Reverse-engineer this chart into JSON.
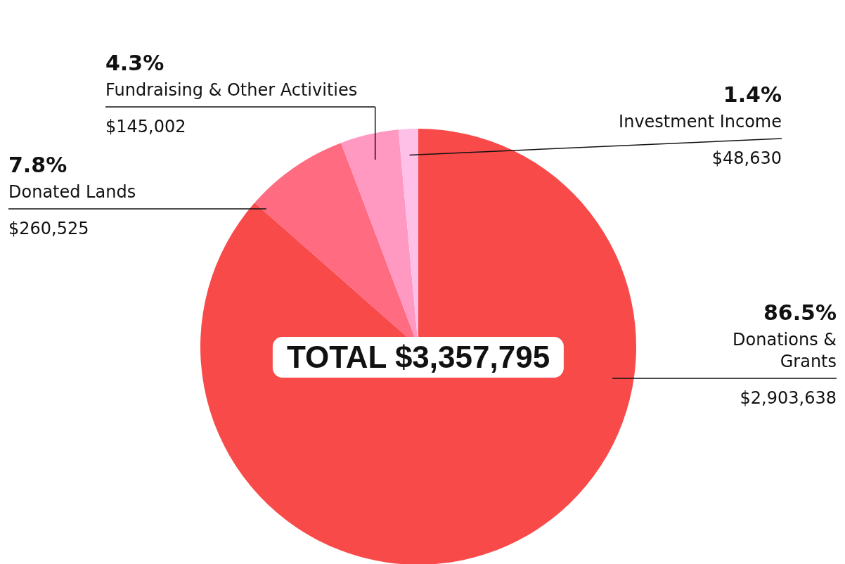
{
  "chart_data": {
    "type": "pie",
    "categories": [
      "Donations &\nGrants",
      "Donated Lands",
      "Fundraising & Other Activities",
      "Investment Income"
    ],
    "values": [
      2903638,
      260525,
      145002,
      48630
    ],
    "value_labels": [
      "$2,903,638",
      "$260,525",
      "$145,002",
      "$48,630"
    ],
    "colors": [
      "#f94a4a",
      "#ff6b81",
      "#ff99c2",
      "#ffc0e8"
    ],
    "annotations": [
      {
        "text": "86.5%",
        "x": "Donations &\nGrants"
      },
      {
        "text": "7.8%",
        "x": "Donated Lands"
      },
      {
        "text": "4.3%",
        "x": "Fundraising & Other Activities"
      },
      {
        "text": "1.4%",
        "x": "Investment Income"
      },
      "TOTAL $3,357,795"
    ]
  }
}
